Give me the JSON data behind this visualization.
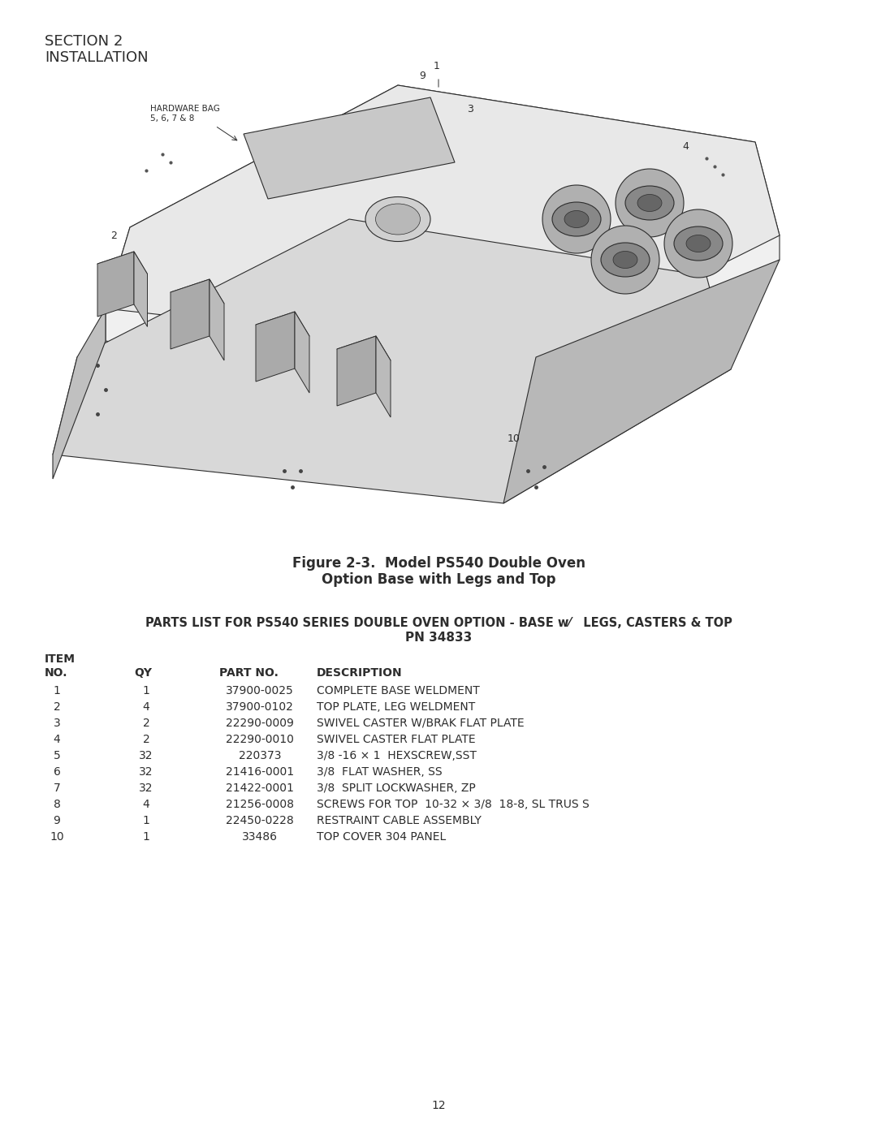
{
  "page_title_line1": "SECTION 2",
  "page_title_line2": "INSTALLATION",
  "figure_caption_line1": "Figure 2-3.  Model PS540 Double Oven",
  "figure_caption_line2": "Option Base with Legs and Top",
  "parts_list_header_line1": "PARTS LIST FOR PS540 SERIES DOUBLE OVEN OPTION - BASE w⁄   LEGS, CASTERS & TOP",
  "parts_list_header_line2": "PN 34833",
  "table_headers": [
    "ITEM\nNO.",
    "QY",
    "PART NO.",
    "DESCRIPTION"
  ],
  "table_data": [
    [
      "1",
      "1",
      "37900-0025",
      "COMPLETE BASE WELDMENT"
    ],
    [
      "2",
      "4",
      "37900-0102",
      "TOP PLATE, LEG WELDMENT"
    ],
    [
      "3",
      "2",
      "22290-0009",
      "SWIVEL CASTER W/BRAK FLAT PLATE"
    ],
    [
      "4",
      "2",
      "22290-0010",
      "SWIVEL CASTER FLAT PLATE"
    ],
    [
      "5",
      "32",
      "220373",
      "3/8 -16 × 1  HEXSCREW,SST"
    ],
    [
      "6",
      "32",
      "21416-0001",
      "3/8  FLAT WASHER, SS"
    ],
    [
      "7",
      "32",
      "21422-0001",
      "3/8  SPLIT LOCKWASHER, ZP"
    ],
    [
      "8",
      "4",
      "21256-0008",
      "SCREWS FOR TOP  10-32 × 3/8  18-8, SL TRUS S"
    ],
    [
      "9",
      "1",
      "22450-0228",
      "RESTRAINT CABLE ASSEMBLY"
    ],
    [
      "10",
      "1",
      "33486",
      "TOP COVER 304 PANEL"
    ]
  ],
  "page_number": "12",
  "hardware_bag_label": "HARDWARE BAG\n5, 6, 7 & 8",
  "bg_color": "#ffffff",
  "text_color": "#2d2d2d",
  "diagram_image_exists": false,
  "title_fontsize": 13,
  "header_fontsize": 10.5,
  "table_fontsize": 10,
  "figure_caption_fontsize": 12
}
